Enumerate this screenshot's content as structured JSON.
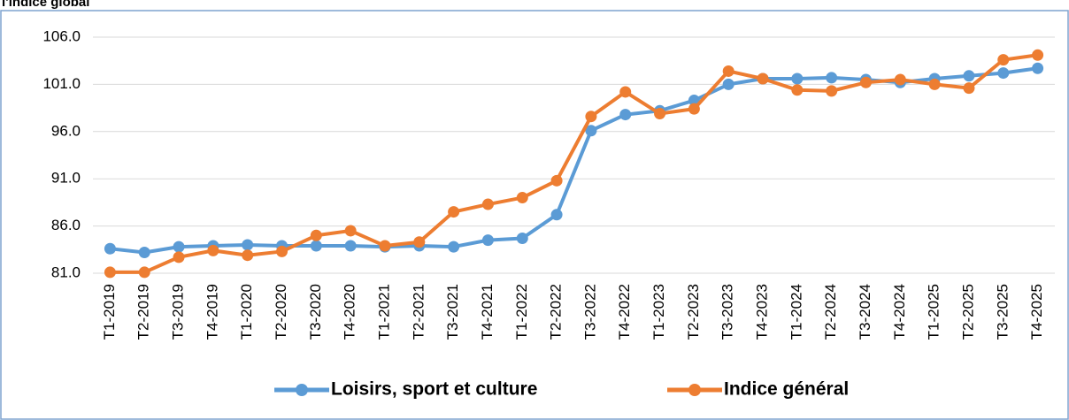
{
  "chart_data": {
    "type": "line",
    "title": "l'indice global",
    "categories": [
      "T1-2019",
      "T2-2019",
      "T3-2019",
      "T4-2019",
      "T1-2020",
      "T2-2020",
      "T3-2020",
      "T4-2020",
      "T1-2021",
      "T2-2021",
      "T3-2021",
      "T4-2021",
      "T1-2022",
      "T2-2022",
      "T3-2022",
      "T4-2022",
      "T1-2023",
      "T2-2023",
      "T3-2023",
      "T4-2023",
      "T1-2024",
      "T2-2024",
      "T3-2024",
      "T4-2024",
      "T1-2025",
      "T2-2025",
      "T3-2025",
      "T4-2025"
    ],
    "series": [
      {
        "name": "Loisirs, sport et culture",
        "color": "#5b9bd5",
        "values": [
          83.6,
          83.2,
          83.8,
          83.9,
          84.0,
          83.9,
          83.9,
          83.9,
          83.8,
          83.9,
          83.8,
          84.5,
          84.7,
          87.2,
          96.1,
          97.8,
          98.2,
          99.3,
          101.0,
          101.6,
          101.6,
          101.7,
          101.5,
          101.2,
          101.6,
          101.9,
          102.2,
          102.7
        ]
      },
      {
        "name": "Indice général",
        "color": "#ed7d31",
        "values": [
          81.1,
          81.1,
          82.7,
          83.4,
          82.9,
          83.3,
          85.0,
          85.5,
          83.9,
          84.3,
          87.5,
          88.3,
          89.0,
          90.8,
          97.6,
          100.2,
          97.9,
          98.4,
          102.4,
          101.6,
          100.4,
          100.3,
          101.2,
          101.5,
          101.0,
          100.6,
          103.6,
          104.1
        ]
      }
    ],
    "ylim": [
      81,
      106
    ],
    "yticks": [
      {
        "value": 81,
        "label": "81.0"
      },
      {
        "value": 86,
        "label": "86.0"
      },
      {
        "value": 91,
        "label": "91.0"
      },
      {
        "value": 96,
        "label": "96.0"
      },
      {
        "value": 101,
        "label": "101.0"
      },
      {
        "value": 106,
        "label": "106.0"
      }
    ],
    "grid": true,
    "legend": "bottom"
  }
}
